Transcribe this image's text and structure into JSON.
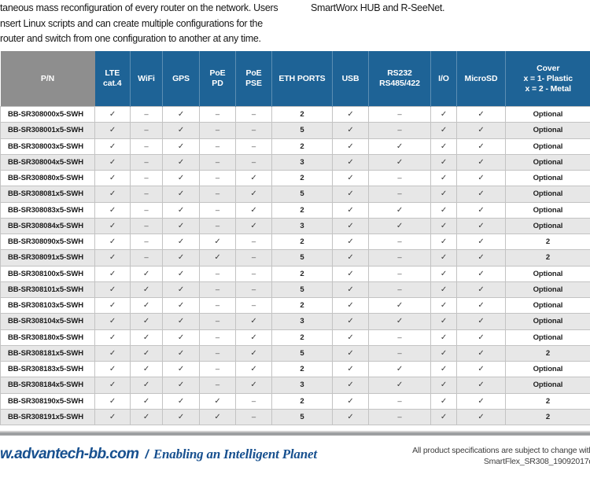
{
  "intro": {
    "left_lines": [
      "taneous mass reconfiguration of every router on the network. Users",
      "nsert Linux scripts and can create multiple configurations for the",
      "router and switch from one configuration to another at any time."
    ],
    "right_text": "SmartWorx HUB and R-SeeNet."
  },
  "table": {
    "columns": [
      {
        "id": "pn",
        "label": "P/N"
      },
      {
        "id": "lte",
        "label": "LTE\ncat.4"
      },
      {
        "id": "wifi",
        "label": "WiFi"
      },
      {
        "id": "gps",
        "label": "GPS"
      },
      {
        "id": "poe_pd",
        "label": "PoE\nPD"
      },
      {
        "id": "poe_pse",
        "label": "PoE\nPSE"
      },
      {
        "id": "eth",
        "label": "ETH PORTS"
      },
      {
        "id": "usb",
        "label": "USB"
      },
      {
        "id": "rs",
        "label": "RS232\nRS485/422"
      },
      {
        "id": "io",
        "label": "I/O"
      },
      {
        "id": "microsd",
        "label": "MicroSD"
      },
      {
        "id": "cover",
        "label": "Cover\nx = 1- Plastic\nx = 2 - Metal"
      }
    ],
    "rows": [
      {
        "pn": "BB-SR308000x5-SWH",
        "cells": [
          "✓",
          "–",
          "✓",
          "–",
          "–",
          "2",
          "✓",
          "–",
          "✓",
          "✓",
          "Optional"
        ]
      },
      {
        "pn": "BB-SR308001x5-SWH",
        "cells": [
          "✓",
          "–",
          "✓",
          "–",
          "–",
          "5",
          "✓",
          "–",
          "✓",
          "✓",
          "Optional"
        ]
      },
      {
        "pn": "BB-SR308003x5-SWH",
        "cells": [
          "✓",
          "–",
          "✓",
          "–",
          "–",
          "2",
          "✓",
          "✓",
          "✓",
          "✓",
          "Optional"
        ]
      },
      {
        "pn": "BB-SR308004x5-SWH",
        "cells": [
          "✓",
          "–",
          "✓",
          "–",
          "–",
          "3",
          "✓",
          "✓",
          "✓",
          "✓",
          "Optional"
        ]
      },
      {
        "pn": "BB-SR308080x5-SWH",
        "cells": [
          "✓",
          "–",
          "✓",
          "–",
          "✓",
          "2",
          "✓",
          "–",
          "✓",
          "✓",
          "Optional"
        ]
      },
      {
        "pn": "BB-SR308081x5-SWH",
        "cells": [
          "✓",
          "–",
          "✓",
          "–",
          "✓",
          "5",
          "✓",
          "–",
          "✓",
          "✓",
          "Optional"
        ]
      },
      {
        "pn": "BB-SR308083x5-SWH",
        "cells": [
          "✓",
          "–",
          "✓",
          "–",
          "✓",
          "2",
          "✓",
          "✓",
          "✓",
          "✓",
          "Optional"
        ]
      },
      {
        "pn": "BB-SR308084x5-SWH",
        "cells": [
          "✓",
          "–",
          "✓",
          "–",
          "✓",
          "3",
          "✓",
          "✓",
          "✓",
          "✓",
          "Optional"
        ]
      },
      {
        "pn": "BB-SR308090x5-SWH",
        "cells": [
          "✓",
          "–",
          "✓",
          "✓",
          "–",
          "2",
          "✓",
          "–",
          "✓",
          "✓",
          "2"
        ]
      },
      {
        "pn": "BB-SR308091x5-SWH",
        "cells": [
          "✓",
          "–",
          "✓",
          "✓",
          "–",
          "5",
          "✓",
          "–",
          "✓",
          "✓",
          "2"
        ]
      },
      {
        "pn": "BB-SR308100x5-SWH",
        "cells": [
          "✓",
          "✓",
          "✓",
          "–",
          "–",
          "2",
          "✓",
          "–",
          "✓",
          "✓",
          "Optional"
        ]
      },
      {
        "pn": "BB-SR308101x5-SWH",
        "cells": [
          "✓",
          "✓",
          "✓",
          "–",
          "–",
          "5",
          "✓",
          "–",
          "✓",
          "✓",
          "Optional"
        ]
      },
      {
        "pn": "BB-SR308103x5-SWH",
        "cells": [
          "✓",
          "✓",
          "✓",
          "–",
          "–",
          "2",
          "✓",
          "✓",
          "✓",
          "✓",
          "Optional"
        ]
      },
      {
        "pn": "BB-SR308104x5-SWH",
        "cells": [
          "✓",
          "✓",
          "✓",
          "–",
          "✓",
          "3",
          "✓",
          "✓",
          "✓",
          "✓",
          "Optional"
        ]
      },
      {
        "pn": "BB-SR308180x5-SWH",
        "cells": [
          "✓",
          "✓",
          "✓",
          "–",
          "✓",
          "2",
          "✓",
          "–",
          "✓",
          "✓",
          "Optional"
        ]
      },
      {
        "pn": "BB-SR308181x5-SWH",
        "cells": [
          "✓",
          "✓",
          "✓",
          "–",
          "✓",
          "5",
          "✓",
          "–",
          "✓",
          "✓",
          "2"
        ]
      },
      {
        "pn": "BB-SR308183x5-SWH",
        "cells": [
          "✓",
          "✓",
          "✓",
          "–",
          "✓",
          "2",
          "✓",
          "✓",
          "✓",
          "✓",
          "Optional"
        ]
      },
      {
        "pn": "BB-SR308184x5-SWH",
        "cells": [
          "✓",
          "✓",
          "✓",
          "–",
          "✓",
          "3",
          "✓",
          "✓",
          "✓",
          "✓",
          "Optional"
        ]
      },
      {
        "pn": "BB-SR308190x5-SWH",
        "cells": [
          "✓",
          "✓",
          "✓",
          "✓",
          "–",
          "2",
          "✓",
          "–",
          "✓",
          "✓",
          "2"
        ]
      },
      {
        "pn": "BB-SR308191x5-SWH",
        "cells": [
          "✓",
          "✓",
          "✓",
          "✓",
          "–",
          "5",
          "✓",
          "–",
          "✓",
          "✓",
          "2"
        ]
      }
    ]
  },
  "footer": {
    "website": "w.advantech-bb.com",
    "separator": "/",
    "slogan": "Enabling an Intelligent Planet",
    "note_line1": "All product specifications are subject to change with",
    "note_line2": "SmartFlex_SR308_19092017d"
  },
  "colors": {
    "header_blue": "#1e6396",
    "header_gray": "#8e8e8e",
    "stripe_gray": "#e7e7e7",
    "footer_blue": "#17508f",
    "bar_gray": "#9d9fa1"
  }
}
